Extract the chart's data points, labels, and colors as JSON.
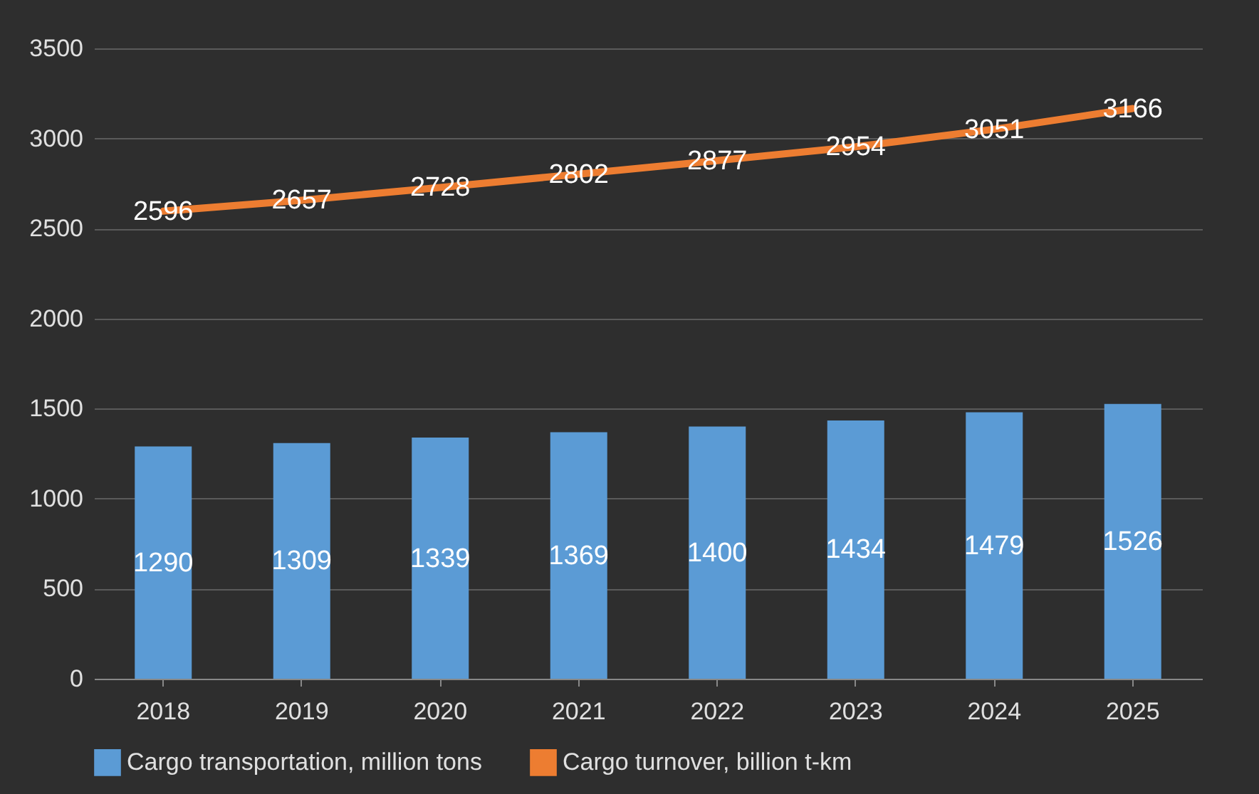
{
  "chart_data": {
    "type": "bar",
    "categories": [
      "2018",
      "2019",
      "2020",
      "2021",
      "2022",
      "2023",
      "2024",
      "2025"
    ],
    "series": [
      {
        "name": "Cargo transportation, million tons",
        "color": "#5b9bd5",
        "values": [
          1290,
          1309,
          1339,
          1369,
          1400,
          1434,
          1479,
          1526
        ]
      },
      {
        "name": "Cargo turnover, billion t-km",
        "type": "line",
        "color": "#ed7d31",
        "values": [
          2596,
          2657,
          2728,
          2802,
          2877,
          2954,
          3051,
          3166
        ]
      }
    ],
    "ylim": [
      0,
      3500
    ],
    "yticks": [
      0,
      500,
      1000,
      1500,
      2000,
      2500,
      3000,
      3500
    ],
    "grid": "y",
    "legend": "bottom",
    "data_labels": true,
    "marker": "none",
    "line_style": "solid"
  }
}
